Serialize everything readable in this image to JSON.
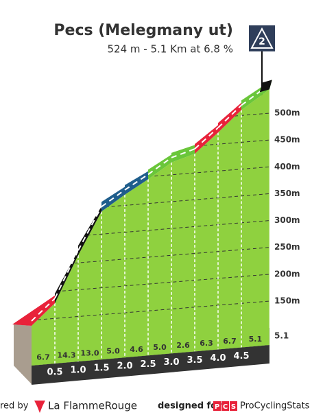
{
  "chart_data": {
    "type": "climb-profile",
    "title": "Pecs (Melegmany ut)",
    "subtitle": "524 m - 5.1 Km at 6.8 %",
    "category": "2",
    "xlim": [
      0,
      5.1
    ],
    "xticks": [
      0.5,
      {
        "value": 1,
        "label": "1.0"
      },
      1.5,
      {
        "value": 2,
        "label": "2.0"
      },
      2.5,
      {
        "value": 3,
        "label": "3.0"
      },
      3.5,
      {
        "value": 4,
        "label": "4.0"
      },
      4.5
    ],
    "ylim": [
      150,
      500
    ],
    "yticks": [
      {
        "value": 150,
        "label": "150m"
      },
      {
        "value": 200,
        "label": "200m"
      },
      {
        "value": 250,
        "label": "250m"
      },
      {
        "value": 300,
        "label": "300m"
      },
      {
        "value": 350,
        "label": "350m"
      },
      {
        "value": 400,
        "label": "400m"
      },
      {
        "value": 450,
        "label": "450m"
      },
      {
        "value": 500,
        "label": "500m"
      }
    ],
    "values": [
      6.7,
      14.3,
      13,
      5,
      4.6,
      5,
      2.6,
      6.3,
      6.7,
      5.1
    ],
    "value_labels": [
      "6.7",
      "14.3",
      "13.0",
      "5.0",
      "4.6",
      "5.0",
      "2.6",
      "6.3",
      "6.7",
      "5.1"
    ],
    "colors": [
      "#e8223a",
      "#111111",
      "#111111",
      "#1f5e8c",
      "#1f5e8c",
      "#6ac63a",
      "#6ac63a",
      "#e8223a",
      "#e8223a",
      "#6ac63a"
    ],
    "face_color": "#8fd13f"
  },
  "footer": {
    "left": "red by",
    "brand": "La FlammeRouge",
    "designed": "designed for",
    "pcs": [
      "P",
      "C",
      "S"
    ],
    "site": "ProCyclingStats"
  }
}
